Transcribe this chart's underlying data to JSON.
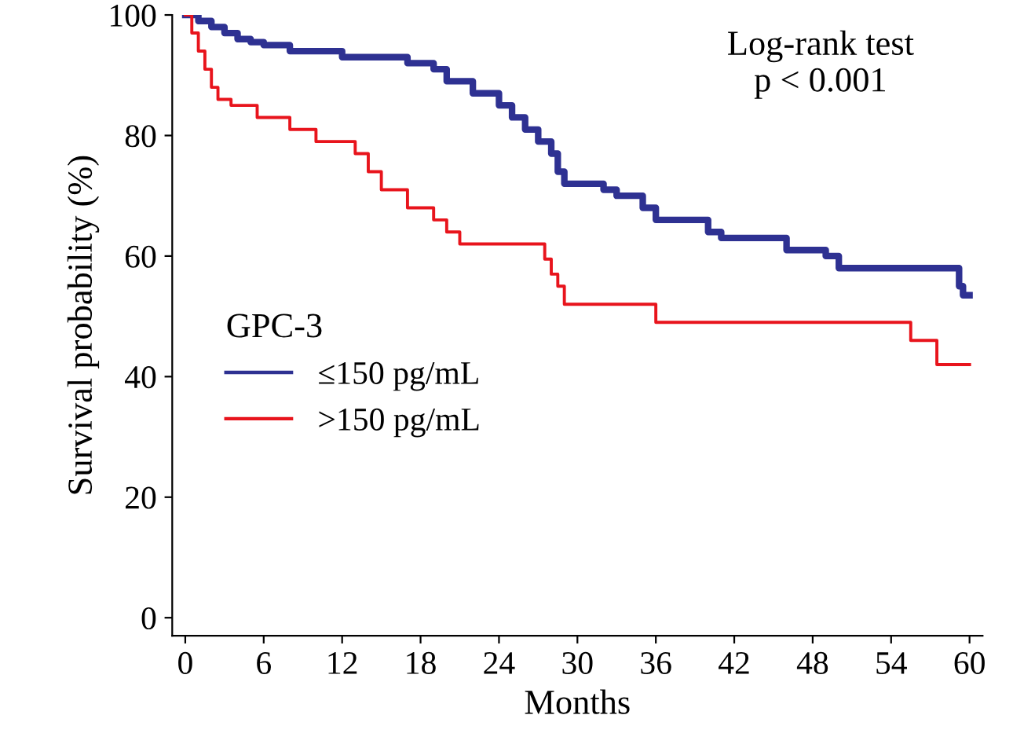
{
  "chart_data": {
    "type": "step",
    "xlabel": "Months",
    "ylabel": "Survival probability (%)",
    "legend_title": "GPC-3",
    "legend": "left",
    "annotations": [
      "Log-rank test\np < 0.001"
    ],
    "xlim": [
      -1,
      61
    ],
    "ylim": [
      -3,
      100
    ],
    "xticks": [
      0,
      6,
      12,
      18,
      24,
      30,
      36,
      42,
      48,
      54,
      60
    ],
    "yticks": [
      0,
      20,
      40,
      60,
      80,
      100
    ],
    "grid": false,
    "series": [
      {
        "name": "≤150 pg/mL",
        "color": "#2e3192",
        "x": [
          0,
          1,
          2,
          3,
          4,
          5,
          6,
          8,
          12,
          17,
          19,
          20,
          22,
          24,
          25,
          26,
          27,
          28,
          28.5,
          29,
          32,
          33,
          35,
          36,
          40,
          41,
          46,
          49,
          50,
          59,
          59.2,
          59.5,
          60
        ],
        "values": [
          100,
          99,
          98,
          97,
          96,
          95.5,
          95,
          94,
          93,
          92,
          91,
          89,
          87,
          85,
          83,
          81,
          79,
          77,
          74,
          72,
          71,
          70,
          68,
          66,
          64,
          63,
          61,
          60,
          58,
          58,
          55,
          53.5,
          53.5
        ]
      },
      {
        "name": ">150 pg/mL",
        "color": "#e8141c",
        "x": [
          0,
          0.5,
          1,
          1.5,
          2,
          2.5,
          3.5,
          5.5,
          8,
          10,
          13,
          14,
          15,
          17,
          19,
          20,
          21,
          27,
          27.5,
          28,
          28.5,
          29,
          36,
          55.5,
          57.5,
          60
        ],
        "values": [
          100,
          97,
          94,
          91,
          88,
          86,
          85,
          83,
          81,
          79,
          77,
          74,
          71,
          68,
          66,
          64,
          62,
          62,
          59.5,
          57,
          55,
          52,
          49,
          46,
          42,
          42
        ]
      }
    ]
  }
}
